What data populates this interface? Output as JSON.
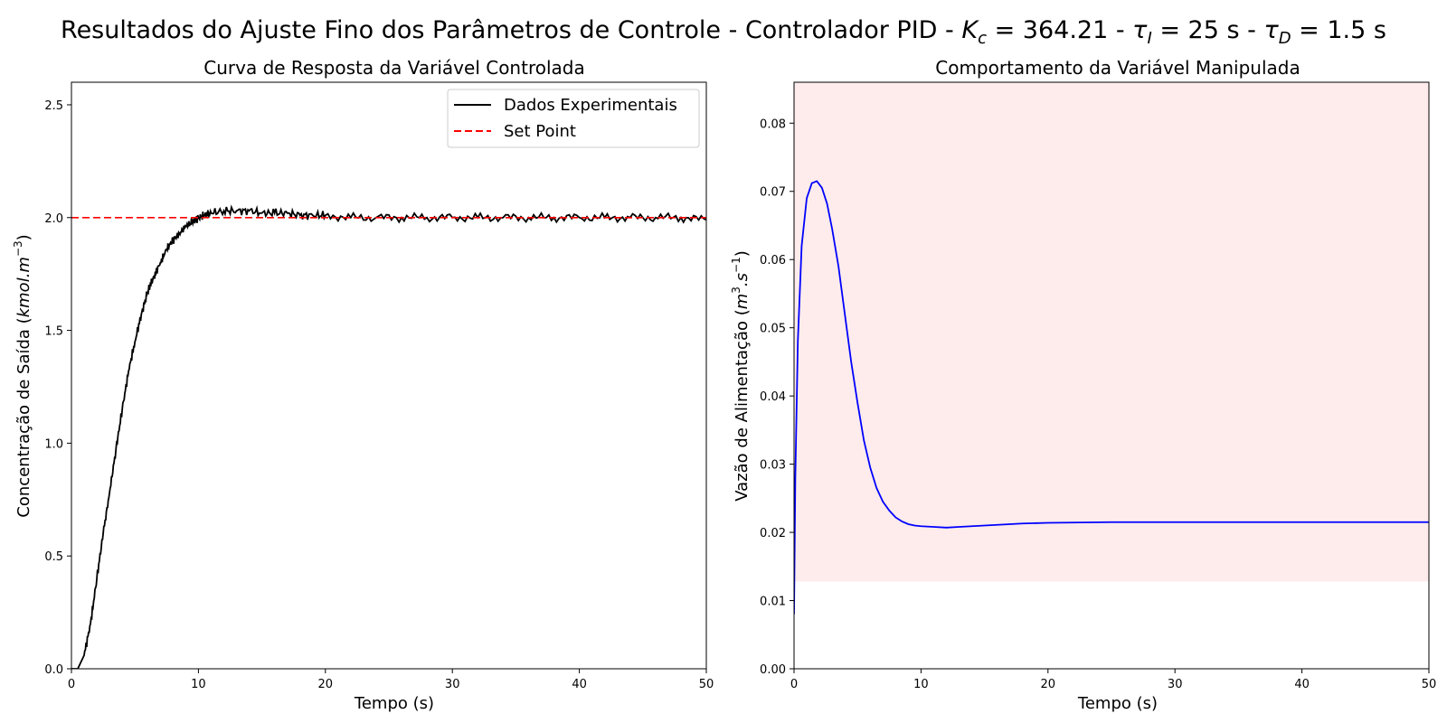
{
  "suptitle": {
    "prefix": "Resultados do Ajuste Fino dos Parâmetros de Controle - Controlador PID - ",
    "kc_symbol": "K",
    "kc_sub": "c",
    "kc_value": " = 364.21 - ",
    "ti_symbol": "τ",
    "ti_sub": "I",
    "ti_value": " = 25 s - ",
    "td_symbol": "τ",
    "td_sub": "D",
    "td_value": " = 1.5 s"
  },
  "chart_data": [
    {
      "type": "line",
      "title": "Curva de Resposta da Variável Controlada",
      "xlabel": "Tempo (s)",
      "ylabel": {
        "prefix": "Concentração de Saída (",
        "unit": "kmol.m",
        "exp": "−3",
        "suffix": ")"
      },
      "xlim": [
        0,
        50
      ],
      "ylim": [
        0,
        2.6
      ],
      "xticks": [
        "0",
        "10",
        "20",
        "30",
        "40",
        "50"
      ],
      "yticks": [
        "0.0",
        "0.5",
        "1.0",
        "1.5",
        "2.0",
        "2.5"
      ],
      "grid": false,
      "legend_position": "upper right",
      "series": [
        {
          "name": "Dados Experimentais",
          "color": "#000000",
          "style": "solid",
          "x": [
            0,
            0.5,
            1,
            1.5,
            2,
            2.5,
            3,
            3.5,
            4,
            4.5,
            5,
            5.5,
            6,
            6.5,
            7,
            7.5,
            8,
            8.5,
            9,
            9.5,
            10,
            10.5,
            11,
            12,
            13,
            14,
            15,
            16,
            17,
            18,
            19,
            20,
            22,
            24,
            26,
            28,
            30,
            32,
            34,
            36,
            38,
            40,
            42,
            44,
            46,
            48,
            50
          ],
          "y": [
            0.0,
            0.0,
            0.06,
            0.2,
            0.4,
            0.6,
            0.78,
            0.97,
            1.15,
            1.32,
            1.45,
            1.57,
            1.67,
            1.74,
            1.8,
            1.86,
            1.9,
            1.93,
            1.96,
            1.98,
            2.0,
            2.01,
            2.02,
            2.03,
            2.03,
            2.03,
            2.02,
            2.02,
            2.02,
            2.01,
            2.01,
            2.01,
            2.0,
            2.0,
            2.0,
            2.0,
            2.0,
            2.0,
            2.0,
            2.0,
            2.0,
            2.0,
            2.0,
            2.0,
            2.0,
            2.0,
            1.99
          ]
        },
        {
          "name": "Set Point",
          "color": "#ff0000",
          "style": "dashed",
          "x": [
            0,
            50
          ],
          "y": [
            2.0,
            2.0
          ]
        }
      ]
    },
    {
      "type": "line",
      "title": "Comportamento da Variável Manipulada",
      "xlabel": "Tempo (s)",
      "ylabel": {
        "prefix": "Vazão de Alimentação (",
        "unit": "m",
        "exp": "3",
        "mid": ".s",
        "exp2": "−1",
        "suffix": ")"
      },
      "xlim": [
        0,
        50
      ],
      "ylim": [
        0,
        0.086
      ],
      "xticks": [
        "0",
        "10",
        "20",
        "30",
        "40",
        "50"
      ],
      "yticks": [
        "0.00",
        "0.01",
        "0.02",
        "0.03",
        "0.04",
        "0.05",
        "0.06",
        "0.07",
        "0.08"
      ],
      "grid": false,
      "shaded_band": {
        "y_from": 0.0128,
        "y_to": 0.086,
        "color": "#fdeceb"
      },
      "series": [
        {
          "name": "",
          "color": "#0000ff",
          "style": "solid",
          "x": [
            0,
            0.1,
            0.3,
            0.6,
            1,
            1.4,
            1.8,
            2.2,
            2.6,
            3,
            3.5,
            4,
            4.5,
            5,
            5.5,
            6,
            6.5,
            7,
            7.5,
            8,
            8.5,
            9,
            9.5,
            10,
            11,
            12,
            13,
            14,
            15,
            16,
            18,
            20,
            25,
            30,
            35,
            40,
            45,
            50
          ],
          "y": [
            0.008,
            0.028,
            0.048,
            0.062,
            0.069,
            0.0712,
            0.0715,
            0.0705,
            0.0682,
            0.0645,
            0.059,
            0.052,
            0.045,
            0.039,
            0.0335,
            0.0295,
            0.0265,
            0.0245,
            0.0232,
            0.0222,
            0.0216,
            0.0212,
            0.021,
            0.0209,
            0.0208,
            0.0207,
            0.0208,
            0.0209,
            0.021,
            0.0211,
            0.0213,
            0.0214,
            0.0215,
            0.0215,
            0.0215,
            0.0215,
            0.0215,
            0.0215
          ]
        }
      ]
    }
  ]
}
